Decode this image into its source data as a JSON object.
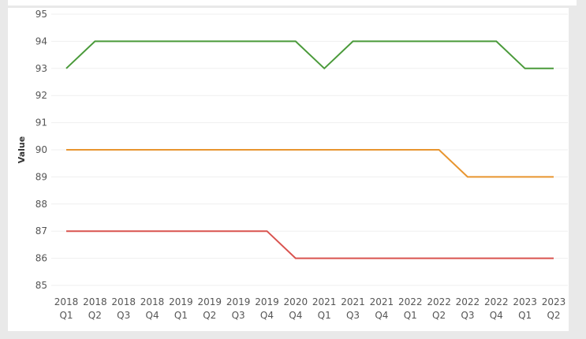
{
  "chart_data": {
    "type": "line",
    "title": "",
    "xlabel": "",
    "ylabel": "Value",
    "ylim": [
      85,
      95
    ],
    "yticks": [
      85,
      86,
      87,
      88,
      89,
      90,
      91,
      92,
      93,
      94,
      95
    ],
    "grid": "horizontal",
    "categories": [
      {
        "year": "2018",
        "quarter": "Q1"
      },
      {
        "year": "2018",
        "quarter": "Q2"
      },
      {
        "year": "2018",
        "quarter": "Q3"
      },
      {
        "year": "2018",
        "quarter": "Q4"
      },
      {
        "year": "2019",
        "quarter": "Q1"
      },
      {
        "year": "2019",
        "quarter": "Q2"
      },
      {
        "year": "2019",
        "quarter": "Q3"
      },
      {
        "year": "2019",
        "quarter": "Q4"
      },
      {
        "year": "2020",
        "quarter": "Q4"
      },
      {
        "year": "2021",
        "quarter": "Q1"
      },
      {
        "year": "2021",
        "quarter": "Q3"
      },
      {
        "year": "2021",
        "quarter": "Q4"
      },
      {
        "year": "2022",
        "quarter": "Q1"
      },
      {
        "year": "2022",
        "quarter": "Q2"
      },
      {
        "year": "2022",
        "quarter": "Q3"
      },
      {
        "year": "2022",
        "quarter": "Q4"
      },
      {
        "year": "2023",
        "quarter": "Q1"
      },
      {
        "year": "2023",
        "quarter": "Q2"
      }
    ],
    "series": [
      {
        "color": "#4a9a3a",
        "values": [
          93,
          94,
          94,
          94,
          94,
          94,
          94,
          94,
          94,
          93,
          94,
          94,
          94,
          94,
          94,
          94,
          93,
          93
        ]
      },
      {
        "color": "#e8952f",
        "values": [
          90,
          90,
          90,
          90,
          90,
          90,
          90,
          90,
          90,
          90,
          90,
          90,
          90,
          90,
          89,
          89,
          89,
          89
        ]
      },
      {
        "color": "#d9534f",
        "values": [
          87,
          87,
          87,
          87,
          87,
          87,
          87,
          87,
          86,
          86,
          86,
          86,
          86,
          86,
          86,
          86,
          86,
          86
        ]
      }
    ]
  }
}
